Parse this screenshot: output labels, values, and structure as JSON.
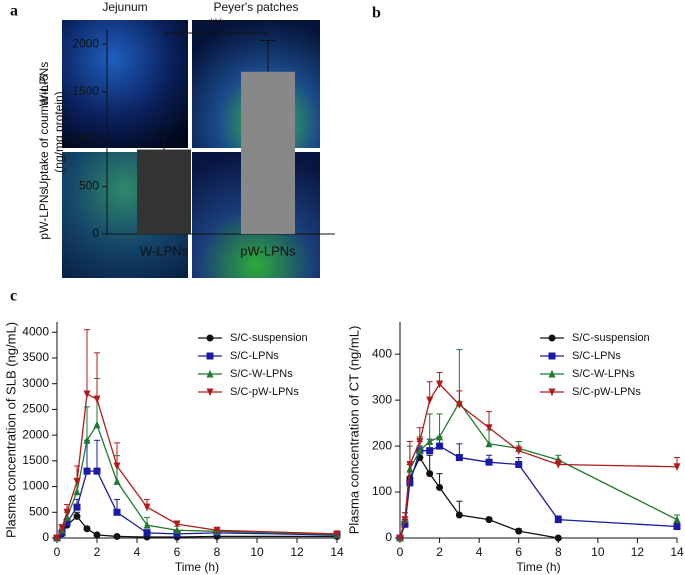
{
  "panel_a": {
    "label": "a",
    "columns": [
      "Jejunum",
      "Peyer's patches"
    ],
    "rows": [
      "W-LPNs",
      "pW-LPNs"
    ]
  },
  "chart_data": [
    {
      "type": "bar",
      "label": "b",
      "ylabel": [
        "Uptake of coumarin-6",
        "(ng/mg protein)"
      ],
      "categories": [
        "W-LPNs",
        "pW-LPNs"
      ],
      "values": [
        890,
        1710
      ],
      "errors": [
        190,
        330
      ],
      "colors": [
        "#333333",
        "#888888"
      ],
      "ylim": [
        0,
        2150
      ],
      "yticks": [
        0,
        500,
        1000,
        1500,
        2000
      ],
      "annotation": "***"
    },
    {
      "type": "line",
      "label": "c",
      "xlabel": "Time (h)",
      "ylabel": "Plasma concentration of SLB (ng/mL)",
      "x": [
        0,
        0.25,
        0.5,
        1,
        1.5,
        2,
        3,
        4.5,
        6,
        8,
        14
      ],
      "xlim": [
        0,
        14
      ],
      "xticks": [
        0,
        2,
        4,
        6,
        8,
        10,
        12,
        14
      ],
      "ylim": [
        0,
        4200
      ],
      "yticks": [
        0,
        500,
        1000,
        1500,
        2000,
        2500,
        3000,
        3500,
        4000
      ],
      "series": [
        {
          "name": "S/C-suspension",
          "color": "#111111",
          "marker": "circle",
          "values": [
            0,
            80,
            250,
            420,
            180,
            60,
            30,
            20,
            20,
            30,
            30
          ],
          "errors": [
            0,
            20,
            60,
            80,
            40,
            20,
            10,
            10,
            10,
            10,
            10
          ]
        },
        {
          "name": "S/C-LPNs",
          "color": "#1a1aa6",
          "marker": "square",
          "values": [
            0,
            100,
            300,
            600,
            1300,
            1300,
            500,
            100,
            80,
            100,
            60
          ],
          "errors": [
            0,
            30,
            80,
            150,
            600,
            600,
            250,
            60,
            40,
            40,
            30
          ]
        },
        {
          "name": "S/C-W-LPNs",
          "color": "#1e7a2e",
          "marker": "triangle",
          "values": [
            0,
            150,
            400,
            900,
            1900,
            2200,
            1100,
            250,
            150,
            130,
            70
          ],
          "errors": [
            0,
            40,
            100,
            250,
            650,
            900,
            500,
            150,
            80,
            60,
            30
          ]
        },
        {
          "name": "S/C-pW-LPNs",
          "color": "#b01c1c",
          "marker": "triangle-down",
          "values": [
            0,
            200,
            500,
            1100,
            2800,
            2700,
            1400,
            600,
            270,
            150,
            80
          ],
          "errors": [
            0,
            60,
            150,
            300,
            1250,
            900,
            450,
            150,
            60,
            50,
            30
          ]
        }
      ]
    },
    {
      "type": "line",
      "xlabel": "Time (h)",
      "ylabel": "Plasma concentration of CT (ng/mL)",
      "x": [
        0,
        0.25,
        0.5,
        1,
        1.5,
        2,
        3,
        4.5,
        6,
        8,
        14
      ],
      "xlim": [
        0,
        14
      ],
      "xticks": [
        0,
        2,
        4,
        6,
        8,
        10,
        12,
        14
      ],
      "ylim": [
        0,
        470
      ],
      "yticks": [
        0,
        100,
        200,
        300,
        400
      ],
      "series": [
        {
          "name": "S/C-suspension",
          "color": "#111111",
          "marker": "circle",
          "values": [
            0,
            30,
            130,
            175,
            140,
            110,
            50,
            40,
            15,
            0,
            null
          ],
          "errors": [
            0,
            10,
            30,
            25,
            40,
            30,
            30,
            5,
            5,
            0,
            null
          ]
        },
        {
          "name": "S/C-LPNs",
          "color": "#1a1aa6",
          "marker": "square",
          "values": [
            0,
            30,
            120,
            190,
            190,
            200,
            175,
            165,
            160,
            40,
            25
          ],
          "errors": [
            0,
            10,
            40,
            20,
            25,
            20,
            30,
            15,
            15,
            8,
            8
          ]
        },
        {
          "name": "S/C-W-LPNs",
          "color": "#1e7a2e",
          "marker": "triangle",
          "values": [
            0,
            40,
            150,
            190,
            210,
            220,
            295,
            205,
            195,
            170,
            40
          ],
          "errors": [
            0,
            15,
            50,
            30,
            60,
            50,
            115,
            30,
            15,
            10,
            10
          ]
        },
        {
          "name": "S/C-pW-LPNs",
          "color": "#b01c1c",
          "marker": "triangle-down",
          "values": [
            0,
            40,
            160,
            210,
            300,
            335,
            290,
            240,
            190,
            160,
            155
          ],
          "errors": [
            0,
            15,
            50,
            30,
            40,
            25,
            30,
            35,
            10,
            10,
            20
          ]
        }
      ]
    }
  ]
}
